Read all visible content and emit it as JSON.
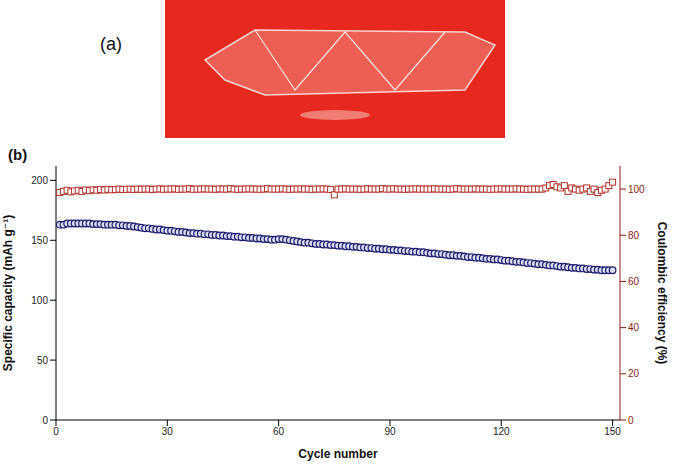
{
  "panel_labels": [
    "(a)",
    "(b)"
  ],
  "chart_data": {
    "type": "line",
    "x_label": "Cycle number",
    "y_label": "Specific capacity (mAh g⁻¹)",
    "y2_label": "Coulombic efficiency (%)",
    "xlim": [
      0,
      152
    ],
    "xticks": [
      0,
      30,
      60,
      90,
      120,
      150
    ],
    "ylim": [
      0,
      212
    ],
    "yticks": [
      0,
      50,
      100,
      150,
      200
    ],
    "y2lim": [
      0,
      110
    ],
    "y2ticks": [
      0,
      20,
      40,
      60,
      80,
      100
    ],
    "grid": false,
    "x": [
      1,
      2,
      3,
      4,
      5,
      6,
      7,
      8,
      9,
      10,
      11,
      12,
      13,
      14,
      15,
      16,
      17,
      18,
      19,
      20,
      21,
      22,
      23,
      24,
      25,
      26,
      27,
      28,
      29,
      30,
      31,
      32,
      33,
      34,
      35,
      36,
      37,
      38,
      39,
      40,
      41,
      42,
      43,
      44,
      45,
      46,
      47,
      48,
      49,
      50,
      51,
      52,
      53,
      54,
      55,
      56,
      57,
      58,
      59,
      60,
      61,
      62,
      63,
      64,
      65,
      66,
      67,
      68,
      69,
      70,
      71,
      72,
      73,
      74,
      75,
      76,
      77,
      78,
      79,
      80,
      81,
      82,
      83,
      84,
      85,
      86,
      87,
      88,
      89,
      90,
      91,
      92,
      93,
      94,
      95,
      96,
      97,
      98,
      99,
      100,
      101,
      102,
      103,
      104,
      105,
      106,
      107,
      108,
      109,
      110,
      111,
      112,
      113,
      114,
      115,
      116,
      117,
      118,
      119,
      120,
      121,
      122,
      123,
      124,
      125,
      126,
      127,
      128,
      129,
      130,
      131,
      132,
      133,
      134,
      135,
      136,
      137,
      138,
      139,
      140,
      141,
      142,
      143,
      144,
      145,
      146,
      147,
      148,
      149,
      150
    ],
    "series": [
      {
        "color": "#1c1c6e",
        "marker": "circle",
        "line_style": "none",
        "values": [
          163,
          163,
          164,
          164,
          164,
          164,
          164,
          164,
          164,
          163.5,
          163.5,
          163.5,
          163,
          163,
          163,
          163,
          162.5,
          162.5,
          162,
          162,
          161.5,
          161,
          160.5,
          160,
          160,
          159.5,
          159,
          159,
          158.5,
          158,
          158,
          157.5,
          157,
          157,
          156.5,
          156,
          156,
          155.5,
          155.5,
          155,
          155,
          154.5,
          154.5,
          154,
          154,
          153.5,
          153.5,
          153,
          153,
          152.5,
          152.5,
          152,
          152,
          151.5,
          151.5,
          151,
          151,
          150.5,
          150.5,
          151,
          151,
          150.5,
          150,
          149.5,
          149,
          148.5,
          148,
          148,
          147.5,
          147,
          147,
          146.5,
          146.5,
          146,
          146,
          145.5,
          145.5,
          145,
          145,
          144.5,
          144.5,
          144,
          144,
          143.5,
          143.5,
          143,
          143,
          142.5,
          142.5,
          142,
          142,
          141.5,
          141.5,
          141,
          141,
          140.5,
          140.5,
          140,
          140,
          139.5,
          139,
          139,
          138.5,
          138.5,
          138,
          137.5,
          137.5,
          137,
          137,
          136.5,
          136,
          136,
          135.5,
          135.5,
          135,
          134.5,
          134.5,
          134,
          134,
          133.5,
          133,
          133,
          132.5,
          132,
          132,
          131.5,
          131,
          131,
          130.5,
          130,
          130,
          129.5,
          129,
          129,
          128.5,
          128,
          128,
          127.5,
          127,
          127,
          126.5,
          126.5,
          126,
          126,
          125.5,
          125.5,
          125,
          125,
          125,
          125
        ]
      },
      {
        "color": "#b5322a",
        "marker": "square",
        "line_style": "none",
        "axis": "y2",
        "values": [
          98.5,
          99,
          99.5,
          98.8,
          99.2,
          99.5,
          99,
          99.6,
          99.3,
          99.7,
          99.5,
          99.8,
          99.6,
          99.9,
          99.7,
          99.8,
          100,
          99.8,
          99.9,
          100,
          99.8,
          100,
          99.9,
          100,
          100,
          99.8,
          100,
          100.1,
          99.9,
          100,
          100,
          100.1,
          99.9,
          100,
          100,
          100.2,
          99.9,
          100,
          100,
          100.1,
          100,
          100,
          99.9,
          100.1,
          100,
          100,
          100.2,
          100,
          99.9,
          100,
          100,
          100.1,
          100,
          100,
          99.9,
          100,
          100.2,
          100,
          100,
          100,
          100.1,
          100,
          99.9,
          100,
          100,
          100.1,
          100,
          100,
          99.9,
          100,
          100,
          100.1,
          100,
          99.8,
          97.5,
          100,
          100,
          100.1,
          100,
          100,
          100,
          99.9,
          100,
          100.1,
          100,
          100,
          100,
          100.2,
          100,
          100,
          100.1,
          100,
          100,
          99.9,
          100,
          100,
          100.1,
          100,
          100,
          100,
          100,
          100.1,
          100,
          100,
          100,
          99.9,
          100,
          100.2,
          100,
          100,
          100,
          100,
          100.1,
          100,
          100,
          100,
          99.9,
          100,
          100,
          100.1,
          100,
          100,
          100,
          100.1,
          100,
          100,
          99.9,
          100,
          100,
          100,
          100,
          100.5,
          101.5,
          102,
          101,
          100.5,
          101.5,
          99,
          100.5,
          100,
          99.5,
          100,
          100.5,
          99,
          100,
          98.5,
          99.5,
          100,
          101.5,
          103
        ]
      }
    ]
  }
}
